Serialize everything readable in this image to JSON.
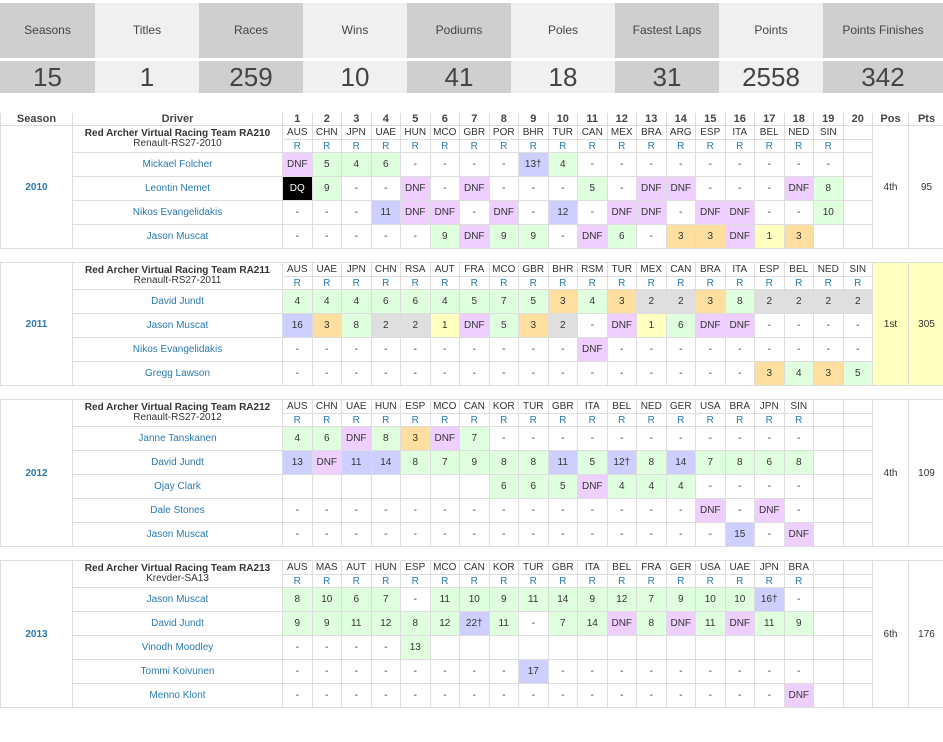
{
  "stats": [
    {
      "label": "Seasons",
      "value": "15"
    },
    {
      "label": "Titles",
      "value": "1"
    },
    {
      "label": "Races",
      "value": "259"
    },
    {
      "label": "Wins",
      "value": "10"
    },
    {
      "label": "Podiums",
      "value": "41"
    },
    {
      "label": "Poles",
      "value": "18"
    },
    {
      "label": "Fastest Laps",
      "value": "31"
    },
    {
      "label": "Points",
      "value": "2558"
    },
    {
      "label": "Points Finishes",
      "value": "342"
    }
  ],
  "header": {
    "season": "Season",
    "driver": "Driver",
    "pos": "Pos",
    "pts": "Pts",
    "rounds": [
      "1",
      "2",
      "3",
      "4",
      "5",
      "6",
      "7",
      "8",
      "9",
      "10",
      "11",
      "12",
      "13",
      "14",
      "15",
      "16",
      "17",
      "18",
      "19",
      "20"
    ]
  },
  "seasons": [
    {
      "year": "2010",
      "pos": "4th",
      "pts": "95",
      "champ": false,
      "team": "Red Archer Virtual Racing Team RA210",
      "car": "Renault-RS27-2010",
      "races": [
        "AUS",
        "CHN",
        "JPN",
        "UAE",
        "HUN",
        "MCO",
        "GBR",
        "POR",
        "BHR",
        "TUR",
        "CAN",
        "MEX",
        "BRA",
        "ARG",
        "ESP",
        "ITA",
        "BEL",
        "NED",
        "SIN"
      ],
      "drivers": [
        {
          "name": "Mickael Folcher",
          "results": [
            "DNF",
            "5",
            "4",
            "6",
            "-",
            "-",
            "-",
            "-",
            "13†",
            "4",
            "-",
            "-",
            "-",
            "-",
            "-",
            "-",
            "-",
            "-",
            "-"
          ],
          "cls": [
            "dnf",
            "pt",
            "pt",
            "pt",
            "",
            "",
            "",
            "",
            "nc",
            "pt",
            "",
            "",
            "",
            "",
            "",
            "",
            "",
            "",
            ""
          ]
        },
        {
          "name": "Leontin Nemet",
          "results": [
            "DQ",
            "9",
            "-",
            "-",
            "DNF",
            "-",
            "DNF",
            "-",
            "-",
            "-",
            "5",
            "-",
            "DNF",
            "DNF",
            "-",
            "-",
            "-",
            "DNF",
            "8"
          ],
          "cls": [
            "dq",
            "pt",
            "",
            "",
            "dnf",
            "",
            "dnf",
            "",
            "",
            "",
            "pt",
            "",
            "dnf",
            "dnf",
            "",
            "",
            "",
            "dnf",
            "pt"
          ]
        },
        {
          "name": "Nikos Evangelidakis",
          "results": [
            "-",
            "-",
            "-",
            "11",
            "DNF",
            "DNF",
            "-",
            "DNF",
            "-",
            "12",
            "-",
            "DNF",
            "DNF",
            "-",
            "DNF",
            "DNF",
            "-",
            "-",
            "10"
          ],
          "cls": [
            "",
            "",
            "",
            "nc",
            "dnf",
            "dnf",
            "",
            "dnf",
            "",
            "nc",
            "",
            "dnf",
            "dnf",
            "",
            "dnf",
            "dnf",
            "",
            "",
            "pt"
          ]
        },
        {
          "name": "Jason Muscat",
          "results": [
            "-",
            "-",
            "-",
            "-",
            "-",
            "9",
            "DNF",
            "9",
            "9",
            "-",
            "DNF",
            "6",
            "-",
            "3",
            "3",
            "DNF",
            "1",
            "3",
            ""
          ],
          "cls": [
            "",
            "",
            "",
            "",
            "",
            "pt",
            "dnf",
            "pt",
            "pt",
            "",
            "dnf",
            "pt",
            "",
            "p3",
            "p3",
            "dnf",
            "p1",
            "p3",
            ""
          ]
        }
      ]
    },
    {
      "year": "2011",
      "pos": "1st",
      "pts": "305",
      "champ": true,
      "team": "Red Archer Virtual Racing Team RA211",
      "car": "Renault-RS27-2011",
      "races": [
        "AUS",
        "UAE",
        "JPN",
        "CHN",
        "RSA",
        "AUT",
        "FRA",
        "MCO",
        "GBR",
        "BHR",
        "RSM",
        "TUR",
        "MEX",
        "CAN",
        "BRA",
        "ITA",
        "ESP",
        "BEL",
        "NED",
        "SIN"
      ],
      "drivers": [
        {
          "name": "David Jundt",
          "results": [
            "4",
            "4",
            "4",
            "6",
            "6",
            "4",
            "5",
            "7",
            "5",
            "3",
            "4",
            "3",
            "2",
            "2",
            "3",
            "8",
            "2",
            "2",
            "2",
            "2"
          ],
          "cls": [
            "pt",
            "pt",
            "pt",
            "pt",
            "pt",
            "pt",
            "pt",
            "pt",
            "pt",
            "p3",
            "pt",
            "p3",
            "p2",
            "p2",
            "p3",
            "pt",
            "p2",
            "p2",
            "p2",
            "p2"
          ]
        },
        {
          "name": "Jason Muscat",
          "results": [
            "16",
            "3",
            "8",
            "2",
            "2",
            "1",
            "DNF",
            "5",
            "3",
            "2",
            "-",
            "DNF",
            "1",
            "6",
            "DNF",
            "DNF",
            "-",
            "-",
            "-",
            "-"
          ],
          "cls": [
            "nc",
            "p3",
            "pt",
            "p2",
            "p2",
            "p1",
            "dnf",
            "pt",
            "p3",
            "p2",
            "",
            "dnf",
            "p1",
            "pt",
            "dnf",
            "dnf",
            "",
            "",
            "",
            ""
          ]
        },
        {
          "name": "Nikos Evangelidakis",
          "results": [
            "-",
            "-",
            "-",
            "-",
            "-",
            "-",
            "-",
            "-",
            "-",
            "-",
            "DNF",
            "-",
            "-",
            "-",
            "-",
            "-",
            "-",
            "-",
            "-",
            "-"
          ],
          "cls": [
            "",
            "",
            "",
            "",
            "",
            "",
            "",
            "",
            "",
            "",
            "dnf",
            "",
            "",
            "",
            "",
            "",
            "",
            "",
            "",
            ""
          ]
        },
        {
          "name": "Gregg Lawson",
          "results": [
            "-",
            "-",
            "-",
            "-",
            "-",
            "-",
            "-",
            "-",
            "-",
            "-",
            "-",
            "-",
            "-",
            "-",
            "-",
            "-",
            "3",
            "4",
            "3",
            "5"
          ],
          "cls": [
            "",
            "",
            "",
            "",
            "",
            "",
            "",
            "",
            "",
            "",
            "",
            "",
            "",
            "",
            "",
            "",
            "p3",
            "pt",
            "p3",
            "pt"
          ]
        }
      ]
    },
    {
      "year": "2012",
      "pos": "4th",
      "pts": "109",
      "champ": false,
      "team": "Red Archer Virtual Racing Team RA212",
      "car": "Renault-RS27-2012",
      "races": [
        "AUS",
        "CHN",
        "UAE",
        "HUN",
        "ESP",
        "MCO",
        "CAN",
        "KOR",
        "TUR",
        "GBR",
        "ITA",
        "BEL",
        "NED",
        "GER",
        "USA",
        "BRA",
        "JPN",
        "SIN"
      ],
      "drivers": [
        {
          "name": "Janne Tanskanen",
          "results": [
            "4",
            "6",
            "DNF",
            "8",
            "3",
            "DNF",
            "7",
            "-",
            "-",
            "-",
            "-",
            "-",
            "-",
            "-",
            "-",
            "-",
            "-",
            "-"
          ],
          "cls": [
            "pt",
            "pt",
            "dnf",
            "pt",
            "p3",
            "dnf",
            "pt",
            "",
            "",
            "",
            "",
            "",
            "",
            "",
            "",
            "",
            "",
            ""
          ]
        },
        {
          "name": "David Jundt",
          "results": [
            "13",
            "DNF",
            "11",
            "14",
            "8",
            "7",
            "9",
            "8",
            "8",
            "11",
            "5",
            "12†",
            "8",
            "14",
            "7",
            "8",
            "6",
            "8"
          ],
          "cls": [
            "nc",
            "dnf",
            "nc",
            "nc",
            "pt",
            "pt",
            "pt",
            "pt",
            "pt",
            "nc",
            "pt",
            "nc",
            "pt",
            "nc",
            "pt",
            "pt",
            "pt",
            "pt"
          ]
        },
        {
          "name": "Ojay Clark",
          "results": [
            "",
            "",
            "",
            "",
            "",
            "",
            "",
            "6",
            "6",
            "5",
            "DNF",
            "4",
            "4",
            "4",
            "-",
            "-",
            "-",
            "-"
          ],
          "cls": [
            "",
            "",
            "",
            "",
            "",
            "",
            "",
            "pt",
            "pt",
            "pt",
            "dnf",
            "pt",
            "pt",
            "pt",
            "",
            "",
            "",
            ""
          ]
        },
        {
          "name": "Dale Stones",
          "results": [
            "-",
            "-",
            "-",
            "-",
            "-",
            "-",
            "-",
            "-",
            "-",
            "-",
            "-",
            "-",
            "-",
            "-",
            "DNF",
            "-",
            "DNF",
            "-"
          ],
          "cls": [
            "",
            "",
            "",
            "",
            "",
            "",
            "",
            "",
            "",
            "",
            "",
            "",
            "",
            "",
            "dnf",
            "",
            "dnf",
            ""
          ]
        },
        {
          "name": "Jason Muscat",
          "results": [
            "-",
            "-",
            "-",
            "-",
            "-",
            "-",
            "-",
            "-",
            "-",
            "-",
            "-",
            "-",
            "-",
            "-",
            "-",
            "15",
            "-",
            "DNF"
          ],
          "cls": [
            "",
            "",
            "",
            "",
            "",
            "",
            "",
            "",
            "",
            "",
            "",
            "",
            "",
            "",
            "",
            "nc",
            "",
            "dnf"
          ]
        }
      ]
    },
    {
      "year": "2013",
      "pos": "6th",
      "pts": "176",
      "champ": false,
      "team": "Red Archer Virtual Racing Team RA213",
      "car": "Krevder-SA13",
      "races": [
        "AUS",
        "MAS",
        "AUT",
        "HUN",
        "ESP",
        "MCO",
        "CAN",
        "KOR",
        "TUR",
        "GBR",
        "ITA",
        "BEL",
        "FRA",
        "GER",
        "USA",
        "UAE",
        "JPN",
        "BRA"
      ],
      "drivers": [
        {
          "name": "Jason Muscat",
          "results": [
            "8",
            "10",
            "6",
            "7",
            "-",
            "11",
            "10",
            "9",
            "11",
            "14",
            "9",
            "12",
            "7",
            "9",
            "10",
            "10",
            "16†",
            "-"
          ],
          "cls": [
            "pt",
            "pt",
            "pt",
            "pt",
            "",
            "pt",
            "pt",
            "pt",
            "pt",
            "pt",
            "pt",
            "pt",
            "pt",
            "pt",
            "pt",
            "pt",
            "nc",
            ""
          ]
        },
        {
          "name": "David Jundt",
          "results": [
            "9",
            "9",
            "11",
            "12",
            "8",
            "12",
            "22†",
            "11",
            "-",
            "7",
            "14",
            "DNF",
            "8",
            "DNF",
            "11",
            "DNF",
            "11",
            "9"
          ],
          "cls": [
            "pt",
            "pt",
            "pt",
            "pt",
            "pt",
            "pt",
            "nc",
            "pt",
            "",
            "pt",
            "pt",
            "dnf",
            "pt",
            "dnf",
            "pt",
            "dnf",
            "pt",
            "pt"
          ]
        },
        {
          "name": "Vinodh Moodley",
          "results": [
            "-",
            "-",
            "-",
            "-",
            "13",
            "",
            "",
            "",
            "",
            "",
            "",
            "",
            "",
            "",
            "",
            "",
            "",
            ""
          ],
          "cls": [
            "",
            "",
            "",
            "",
            "pt",
            "",
            "",
            "",
            "",
            "",
            "",
            "",
            "",
            "",
            "",
            "",
            "",
            ""
          ]
        },
        {
          "name": "Tommi Koivunen",
          "results": [
            "-",
            "-",
            "-",
            "-",
            "-",
            "-",
            "-",
            "-",
            "17",
            "-",
            "-",
            "-",
            "-",
            "-",
            "-",
            "-",
            "-",
            "-"
          ],
          "cls": [
            "",
            "",
            "",
            "",
            "",
            "",
            "",
            "",
            "nc",
            "",
            "",
            "",
            "",
            "",
            "",
            "",
            "",
            ""
          ]
        },
        {
          "name": "Menno Klont",
          "results": [
            "-",
            "-",
            "-",
            "-",
            "-",
            "-",
            "-",
            "-",
            "-",
            "-",
            "-",
            "-",
            "-",
            "-",
            "-",
            "-",
            "-",
            "DNF"
          ],
          "cls": [
            "",
            "",
            "",
            "",
            "",
            "",
            "",
            "",
            "",
            "",
            "",
            "",
            "",
            "",
            "",
            "",
            "",
            "dnf"
          ]
        }
      ]
    }
  ],
  "colors": {
    "dnf": "#efcfff",
    "pt": "#dfffdf",
    "nc": "#cfcfff",
    "p1": "#ffffbf",
    "p2": "#dfdfdf",
    "p3": "#ffdf9f",
    "dq": "#000000",
    "link": "#2a7ab0"
  }
}
